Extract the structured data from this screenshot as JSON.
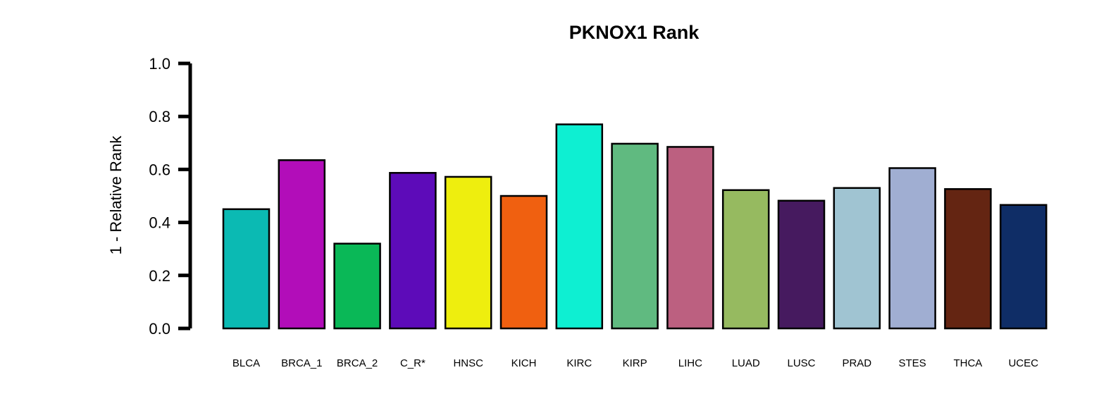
{
  "chart_data": {
    "type": "bar",
    "title": "PKNOX1 Rank",
    "xlabel": "",
    "ylabel": "1 - Relative Rank",
    "ylim": [
      0,
      1
    ],
    "yticks": [
      "0.0",
      "0.2",
      "0.4",
      "0.6",
      "0.8",
      "1.0"
    ],
    "grid": false,
    "categories": [
      "BLCA",
      "BRCA_1",
      "BRCA_2",
      "C_R*",
      "HNSC",
      "KICH",
      "KIRC",
      "KIRP",
      "LIHC",
      "LUAD",
      "LUSC",
      "PRAD",
      "STES",
      "THCA",
      "UCEC"
    ],
    "values": [
      0.45,
      0.635,
      0.32,
      0.587,
      0.572,
      0.5,
      0.77,
      0.697,
      0.685,
      0.522,
      0.482,
      0.53,
      0.605,
      0.526,
      0.466
    ],
    "colors": [
      "#0BBAB3",
      "#B20DB9",
      "#0AB857",
      "#5D0BB9",
      "#EEEE0E",
      "#F06010",
      "#0EEFD2",
      "#60BA80",
      "#BC6080",
      "#96BA60",
      "#461A5F",
      "#A0C4D2",
      "#A0AED2",
      "#642512",
      "#0F2D66"
    ]
  }
}
